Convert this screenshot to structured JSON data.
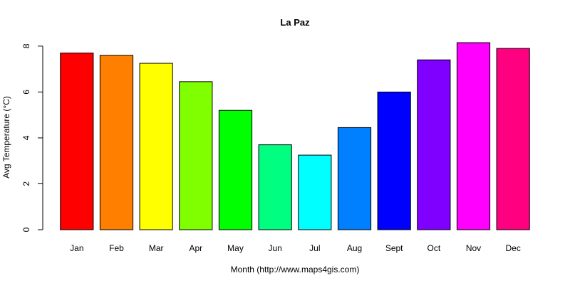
{
  "chart_data": {
    "type": "bar",
    "title": "La Paz",
    "xlabel": "Month (http://www.maps4gis.com)",
    "ylabel": "Avg Temperature (°C)",
    "categories": [
      "Jan",
      "Feb",
      "Mar",
      "Apr",
      "May",
      "Jun",
      "Jul",
      "Aug",
      "Sept",
      "Oct",
      "Nov",
      "Dec"
    ],
    "values": [
      7.7,
      7.6,
      7.25,
      6.45,
      5.2,
      3.7,
      3.25,
      4.45,
      6.0,
      7.4,
      8.15,
      7.9
    ],
    "colors": [
      "#FF0000",
      "#FF8000",
      "#FFFF00",
      "#80FF00",
      "#00FF00",
      "#00FF80",
      "#00FFFF",
      "#0080FF",
      "#0000FF",
      "#8000FF",
      "#FF00FF",
      "#FF0080"
    ],
    "ylim": [
      0,
      8.15
    ],
    "yticks": [
      0,
      2,
      4,
      6,
      8
    ],
    "grid": false,
    "legend": "none"
  }
}
